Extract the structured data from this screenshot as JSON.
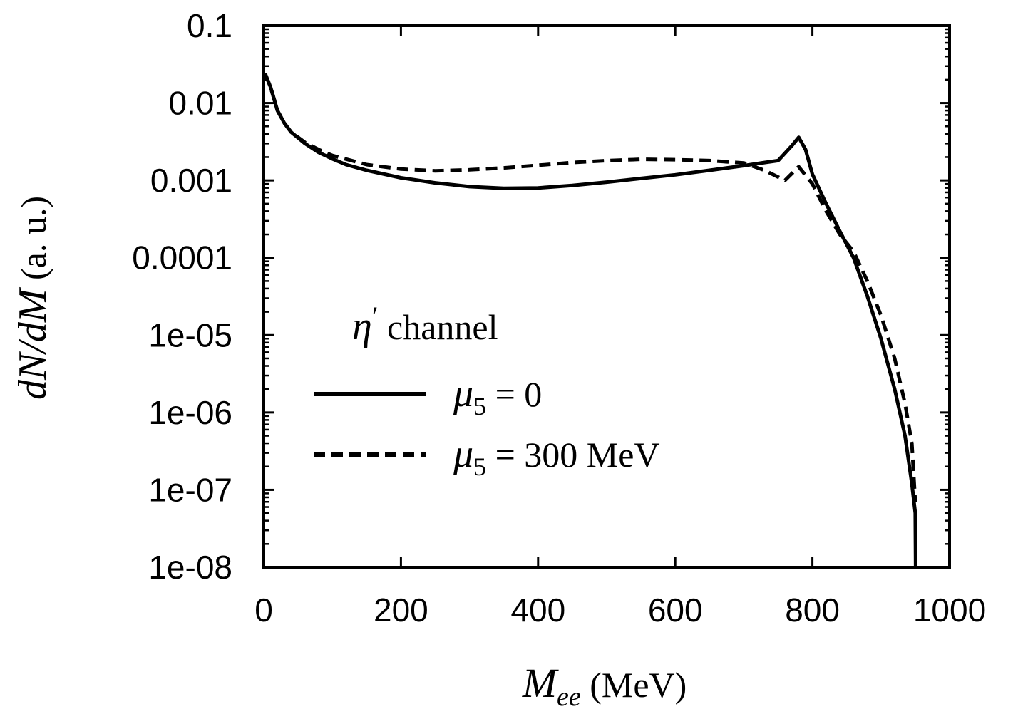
{
  "chart_data": {
    "type": "line",
    "title": "",
    "xlabel": "M_ee (MeV)",
    "ylabel": "dN/dM (a. u.)",
    "xlim": [
      0,
      1000
    ],
    "ylim": [
      1e-08,
      0.1
    ],
    "yscale": "log",
    "x_ticks": [
      0,
      200,
      400,
      600,
      800,
      1000
    ],
    "x_tick_labels": [
      "0",
      "200",
      "400",
      "600",
      "800",
      "1000"
    ],
    "y_ticks": [
      0.1,
      0.01,
      0.001,
      0.0001,
      1e-05,
      1e-06,
      1e-07,
      1e-08
    ],
    "y_tick_labels": [
      "0.1",
      "0.01",
      "0.001",
      "0.0001",
      "1e-05",
      "1e-06",
      "1e-07",
      "1e-08"
    ],
    "legend": {
      "title": "η′ channel",
      "position": "bottom-left"
    },
    "series": [
      {
        "name": "μ5 = 0",
        "style": "solid",
        "color": "#000000",
        "points": [
          [
            2,
            0.024
          ],
          [
            10,
            0.016
          ],
          [
            20,
            0.008
          ],
          [
            30,
            0.0055
          ],
          [
            40,
            0.0042
          ],
          [
            60,
            0.003
          ],
          [
            80,
            0.0023
          ],
          [
            100,
            0.0019
          ],
          [
            120,
            0.0016
          ],
          [
            150,
            0.00135
          ],
          [
            200,
            0.00108
          ],
          [
            250,
            0.00093
          ],
          [
            300,
            0.00083
          ],
          [
            350,
            0.00079
          ],
          [
            400,
            0.0008
          ],
          [
            450,
            0.00086
          ],
          [
            500,
            0.00095
          ],
          [
            550,
            0.00106
          ],
          [
            600,
            0.00118
          ],
          [
            650,
            0.00135
          ],
          [
            700,
            0.00155
          ],
          [
            730,
            0.0017
          ],
          [
            750,
            0.0018
          ],
          [
            770,
            0.0028
          ],
          [
            780,
            0.0036
          ],
          [
            790,
            0.0025
          ],
          [
            800,
            0.0012
          ],
          [
            820,
            0.0005
          ],
          [
            840,
            0.00022
          ],
          [
            860,
            0.0001
          ],
          [
            880,
            3.2e-05
          ],
          [
            900,
            9e-06
          ],
          [
            920,
            2e-06
          ],
          [
            935,
            5e-07
          ],
          [
            945,
            1.2e-07
          ],
          [
            950,
            5e-08
          ],
          [
            950.5,
            1e-08
          ]
        ]
      },
      {
        "name": "μ5 = 300 MeV",
        "style": "dashed",
        "color": "#000000",
        "points": [
          [
            2,
            0.024
          ],
          [
            10,
            0.016
          ],
          [
            20,
            0.008
          ],
          [
            30,
            0.0055
          ],
          [
            40,
            0.0042
          ],
          [
            60,
            0.0031
          ],
          [
            80,
            0.0025
          ],
          [
            100,
            0.0021
          ],
          [
            150,
            0.0016
          ],
          [
            200,
            0.0014
          ],
          [
            250,
            0.00133
          ],
          [
            300,
            0.00137
          ],
          [
            350,
            0.00145
          ],
          [
            400,
            0.00157
          ],
          [
            450,
            0.0017
          ],
          [
            500,
            0.0018
          ],
          [
            550,
            0.00187
          ],
          [
            600,
            0.00185
          ],
          [
            650,
            0.0018
          ],
          [
            700,
            0.00168
          ],
          [
            730,
            0.00135
          ],
          [
            760,
            0.001
          ],
          [
            780,
            0.0015
          ],
          [
            800,
            0.0009
          ],
          [
            820,
            0.0004
          ],
          [
            840,
            0.0002
          ],
          [
            860,
            0.00012
          ],
          [
            880,
            5e-05
          ],
          [
            900,
            1.8e-05
          ],
          [
            920,
            5e-06
          ],
          [
            935,
            1.3e-06
          ],
          [
            945,
            4e-07
          ],
          [
            950,
            7e-08
          ]
        ]
      }
    ]
  }
}
